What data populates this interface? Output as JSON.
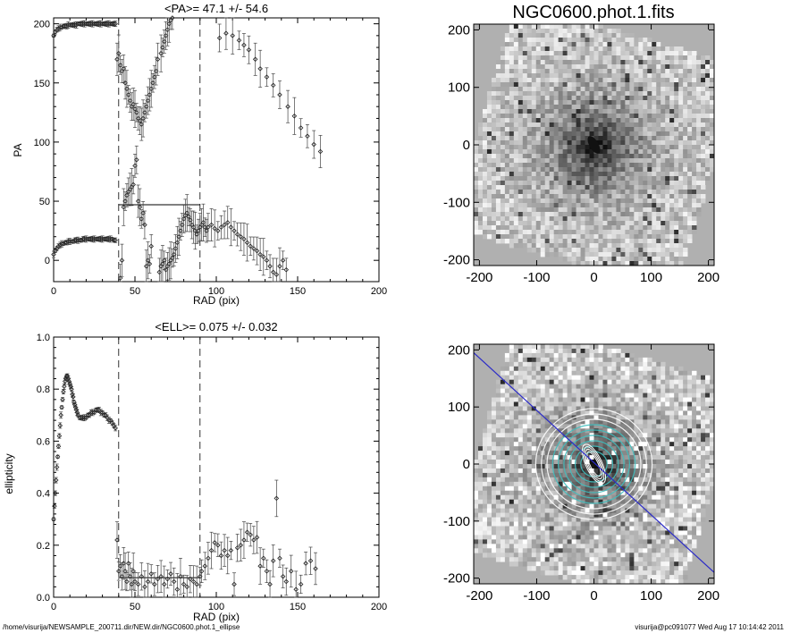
{
  "chart_data": [
    {
      "id": "pa_plot",
      "type": "scatter",
      "title": "<PA>=  47.1 +/-  54.6",
      "xlabel": "RAD (pix)",
      "ylabel": "PA",
      "xlim": [
        0,
        200
      ],
      "ylim": [
        -18,
        205
      ],
      "xticks": [
        0,
        50,
        100,
        150,
        200
      ],
      "yticks": [
        0,
        50,
        100,
        150,
        200
      ],
      "vlines": [
        40,
        90
      ],
      "mean_line": {
        "x": [
          40,
          90
        ],
        "y": 47
      },
      "series": [
        {
          "x": [
            0,
            1,
            2,
            3,
            4,
            5,
            6,
            7,
            8,
            9,
            10,
            11,
            12,
            13,
            14,
            15,
            16,
            17,
            18,
            19,
            20,
            21,
            22,
            23,
            24,
            25,
            26,
            27,
            28,
            29,
            30,
            31,
            32,
            33,
            34,
            35,
            36,
            37,
            38,
            0,
            1,
            2,
            3,
            4,
            5,
            6,
            7,
            8,
            9,
            10,
            11,
            12,
            13,
            14,
            15,
            16,
            17,
            18,
            19,
            20,
            21,
            22,
            23,
            24,
            25,
            26,
            27,
            28,
            29,
            30,
            31,
            32,
            33,
            34,
            35,
            36,
            37,
            38,
            39,
            40,
            41,
            42,
            43,
            44,
            45,
            46,
            47,
            48,
            49,
            50,
            51,
            52,
            53,
            54,
            55,
            56,
            57,
            58,
            59,
            60,
            61,
            62,
            63,
            64,
            66,
            67,
            68,
            69,
            70,
            71,
            72,
            73,
            41,
            42,
            43,
            44,
            45,
            46,
            47,
            48,
            49,
            50,
            51,
            52,
            53,
            54,
            55,
            56,
            57,
            58,
            59,
            60,
            65,
            66,
            67,
            68,
            69,
            70,
            71,
            72,
            73,
            74,
            75,
            76,
            77,
            78,
            79,
            80,
            81,
            82,
            83,
            84,
            85,
            86,
            87,
            88,
            89,
            90,
            91,
            92,
            93,
            94,
            95,
            97,
            99,
            101,
            103,
            105,
            107,
            109,
            111,
            113,
            115,
            117,
            119,
            121,
            123,
            125,
            127,
            129,
            131,
            133,
            135,
            137,
            139,
            141,
            143,
            102,
            106,
            110,
            114,
            117,
            120,
            124,
            127,
            131,
            135,
            139,
            144,
            148,
            152,
            156,
            160,
            164
          ],
          "y": [
            190,
            193,
            195,
            196,
            197,
            197,
            198,
            198,
            198,
            199,
            199,
            199,
            199,
            199,
            199,
            200,
            200,
            200,
            200,
            200,
            200,
            200,
            200,
            200,
            200,
            200,
            200,
            200,
            200,
            200,
            200,
            200,
            200,
            200,
            200,
            200,
            200,
            200,
            200,
            5,
            8,
            10,
            12,
            13,
            14,
            14,
            15,
            15,
            16,
            16,
            16,
            16,
            17,
            17,
            17,
            17,
            17,
            18,
            18,
            18,
            18,
            18,
            18,
            18,
            18,
            18,
            18,
            18,
            18,
            18,
            18,
            18,
            18,
            18,
            18,
            18,
            17,
            17,
            170,
            175,
            165,
            160,
            162,
            150,
            145,
            140,
            135,
            130,
            132,
            128,
            125,
            120,
            118,
            115,
            120,
            125,
            130,
            135,
            140,
            145,
            150,
            155,
            160,
            170,
            175,
            180,
            185,
            190,
            195,
            200,
            203,
            205,
            -15,
            0,
            45,
            50,
            55,
            58,
            60,
            62,
            64,
            80,
            85,
            50,
            45,
            35,
            40,
            30,
            -5,
            0,
            -3,
            12,
            -10,
            -5,
            -3,
            0,
            -8,
            -5,
            -3,
            0,
            2,
            5,
            10,
            15,
            20,
            25,
            30,
            35,
            38,
            40,
            37,
            34,
            30,
            28,
            25,
            22,
            25,
            28,
            30,
            32,
            28,
            25,
            28,
            30,
            27,
            25,
            28,
            30,
            32,
            28,
            25,
            22,
            20,
            18,
            15,
            12,
            10,
            8,
            5,
            3,
            0,
            -5,
            -10,
            -12,
            -5,
            0,
            -8,
            188,
            192,
            190,
            186,
            182,
            178,
            170,
            162,
            155,
            148,
            140,
            130,
            122,
            112,
            105,
            98,
            92
          ]
        }
      ]
    },
    {
      "id": "ell_plot",
      "type": "scatter",
      "title": "<ELL>= 0.075 +/-  0.032",
      "xlabel": "RAD (pix)",
      "ylabel": "ellipticity",
      "xlim": [
        0,
        200
      ],
      "ylim": [
        0.0,
        1.0
      ],
      "xticks": [
        0,
        50,
        100,
        150,
        200
      ],
      "yticks": [
        0.0,
        0.2,
        0.4,
        0.6,
        0.8,
        1.0
      ],
      "vlines": [
        40,
        90
      ],
      "mean_line": {
        "x": [
          40,
          90
        ],
        "y": 0.075
      },
      "series": [
        {
          "x": [
            0,
            0.5,
            1,
            1.5,
            2,
            2.5,
            3,
            3.5,
            4,
            4.5,
            5,
            5.5,
            6,
            6.5,
            7,
            7.5,
            8,
            8.5,
            9,
            9.5,
            10,
            10.5,
            11,
            11.5,
            12,
            12.5,
            13,
            13.5,
            14,
            14.5,
            15,
            16,
            17,
            18,
            19,
            20,
            21,
            22,
            23,
            24,
            25,
            26,
            27,
            28,
            29,
            30,
            31,
            32,
            33,
            34,
            35,
            36,
            37,
            38,
            39,
            40,
            41,
            42,
            43,
            44,
            45,
            46,
            47,
            48,
            49,
            50,
            52,
            54,
            56,
            58,
            60,
            62,
            64,
            66,
            68,
            70,
            72,
            74,
            76,
            78,
            80,
            82,
            84,
            86,
            88,
            90,
            91,
            93,
            95,
            97,
            99,
            101,
            103,
            105,
            107,
            109,
            111,
            113,
            115,
            117,
            119,
            121,
            123,
            125,
            127,
            129,
            131,
            133,
            135,
            137,
            139,
            141,
            143,
            146,
            149,
            152,
            155,
            158,
            161
          ],
          "y": [
            0.3,
            0.35,
            0.4,
            0.45,
            0.5,
            0.54,
            0.58,
            0.62,
            0.66,
            0.7,
            0.73,
            0.76,
            0.79,
            0.81,
            0.83,
            0.84,
            0.85,
            0.85,
            0.84,
            0.83,
            0.82,
            0.81,
            0.8,
            0.78,
            0.77,
            0.75,
            0.74,
            0.73,
            0.72,
            0.71,
            0.7,
            0.69,
            0.69,
            0.69,
            0.69,
            0.69,
            0.7,
            0.7,
            0.71,
            0.71,
            0.71,
            0.72,
            0.72,
            0.72,
            0.71,
            0.71,
            0.7,
            0.7,
            0.69,
            0.68,
            0.68,
            0.67,
            0.66,
            0.65,
            0.22,
            0.1,
            0.12,
            0.08,
            0.13,
            0.1,
            0.06,
            0.13,
            0.08,
            0.05,
            0.1,
            0.06,
            0.05,
            0.08,
            0.04,
            0.06,
            0.09,
            0.05,
            0.07,
            0.08,
            0.05,
            0.07,
            0.09,
            0.06,
            0.03,
            0.08,
            0.05,
            0.04,
            0.07,
            0.06,
            0.05,
            0.08,
            0.1,
            0.12,
            0.15,
            0.18,
            0.21,
            0.2,
            0.16,
            0.18,
            0.16,
            0.18,
            0.05,
            0.19,
            0.2,
            0.22,
            0.25,
            0.24,
            0.22,
            0.23,
            0.12,
            0.15,
            0.1,
            0.05,
            0.14,
            0.38,
            0.15,
            0.08,
            0.06,
            0.1,
            0.03,
            0.05,
            0.13,
            0.14,
            0.11
          ]
        }
      ]
    },
    {
      "id": "image_top",
      "type": "heatmap",
      "title": "NGC0600.phot.1.fits",
      "xlim": [
        -210,
        210
      ],
      "ylim": [
        -210,
        210
      ],
      "xticks": [
        -200,
        -100,
        0,
        100,
        200
      ],
      "yticks": [
        -200,
        -100,
        0,
        100,
        200
      ]
    },
    {
      "id": "image_bottom",
      "type": "heatmap",
      "title": "",
      "xlim": [
        -210,
        210
      ],
      "ylim": [
        -210,
        210
      ],
      "xticks": [
        -200,
        -100,
        0,
        100,
        200
      ],
      "yticks": [
        -200,
        -100,
        0,
        100,
        200
      ],
      "overlay_line_color": "#2b2bc8",
      "contour_color": "#3fbfbf"
    }
  ],
  "footer": {
    "left": "/home/visurija/NEWSAMPLE_200711.dir/NEW.dir/NGC0600.phot.1_ellipse",
    "right": "visurija@pc091077  Wed Aug 17 10:14:42 2011"
  }
}
